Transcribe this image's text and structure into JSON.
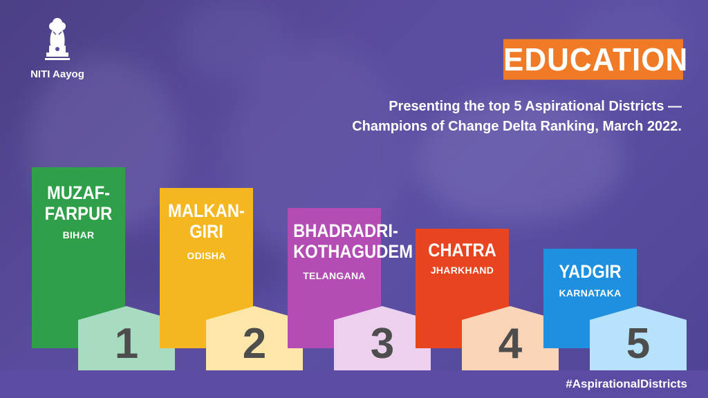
{
  "brand": {
    "name": "NITI Aayog",
    "emblem_icon": "ashoka-emblem-icon"
  },
  "title": "EDUCATION",
  "headline": {
    "line1": "Presenting the top 5 Aspirational Districts —",
    "line2": "Champions of Change Delta Ranking, March 2022."
  },
  "colors": {
    "accent": "#f07a25",
    "background": "#5b4fa4",
    "bar1": "#2f9f49",
    "bar2": "#f5b71f",
    "bar3": "#b34db4",
    "bar4": "#e8441f",
    "bar5": "#1f8fe0",
    "pent1": "#a8dcc0",
    "pent2": "#fde7a8",
    "pent3": "#ecd0ee",
    "pent4": "#f9d4b6",
    "pent5": "#b6e2fb"
  },
  "rankings": [
    {
      "rank": "1",
      "district_line1": "MUZAF-",
      "district_line2": "FARPUR",
      "state": "BIHAR"
    },
    {
      "rank": "2",
      "district_line1": "MALKAN-",
      "district_line2": "GIRI",
      "state": "ODISHA"
    },
    {
      "rank": "3",
      "district_line1": "BHADRADRI-",
      "district_line2": "KOTHAGUDEM",
      "state": "TELANGANA"
    },
    {
      "rank": "4",
      "district_line1": "CHATRA",
      "district_line2": "",
      "state": "JHARKHAND"
    },
    {
      "rank": "5",
      "district_line1": "YADGIR",
      "district_line2": "",
      "state": "KARNATAKA"
    }
  ],
  "hashtag": "#AspirationalDistricts"
}
